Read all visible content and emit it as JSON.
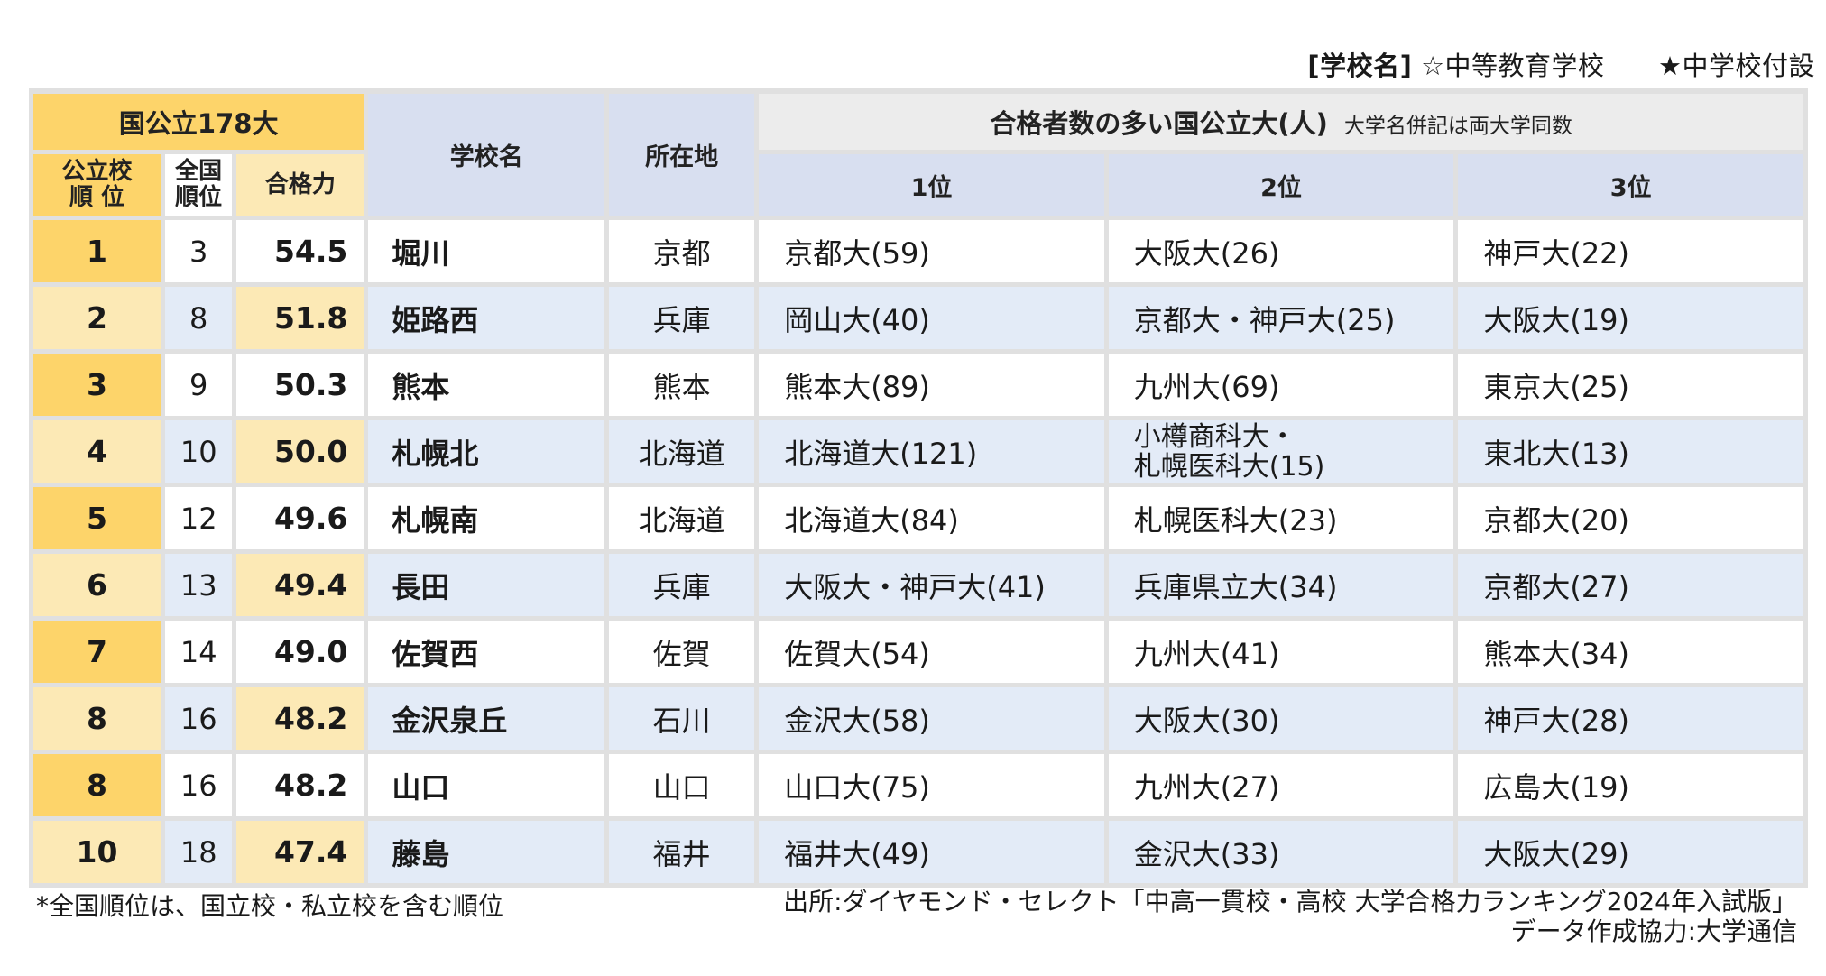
{
  "legend": {
    "label": "[学校名]",
    "chutou": "☆中等教育学校",
    "fusetsu": "★中学校付設"
  },
  "header": {
    "group_label": "国公立178大",
    "school_name": "学校名",
    "location": "所在地",
    "top_unis": "合格者数の多い国公立大(人)",
    "top_unis_note": "大学名併記は両大学同数",
    "public_rank": "公立校\n順 位",
    "national_rank": "全国\n順位",
    "score": "合格力",
    "pos1": "1位",
    "pos2": "2位",
    "pos3": "3位"
  },
  "rows": [
    {
      "public_rank": "1",
      "national_rank": "3",
      "score": "54.5",
      "name": "堀川",
      "location": "京都",
      "u1": "京都大(59)",
      "u2": "大阪大(26)",
      "u3": "神戸大(22)"
    },
    {
      "public_rank": "2",
      "national_rank": "8",
      "score": "51.8",
      "name": "姫路西",
      "location": "兵庫",
      "u1": "岡山大(40)",
      "u2": "京都大・神戸大(25)",
      "u3": "大阪大(19)"
    },
    {
      "public_rank": "3",
      "national_rank": "9",
      "score": "50.3",
      "name": "熊本",
      "location": "熊本",
      "u1": "熊本大(89)",
      "u2": "九州大(69)",
      "u3": "東京大(25)"
    },
    {
      "public_rank": "4",
      "national_rank": "10",
      "score": "50.0",
      "name": "札幌北",
      "location": "北海道",
      "u1": "北海道大(121)",
      "u2": "小樽商科大・\n札幌医科大(15)",
      "u3": "東北大(13)"
    },
    {
      "public_rank": "5",
      "national_rank": "12",
      "score": "49.6",
      "name": "札幌南",
      "location": "北海道",
      "u1": "北海道大(84)",
      "u2": "札幌医科大(23)",
      "u3": "京都大(20)"
    },
    {
      "public_rank": "6",
      "national_rank": "13",
      "score": "49.4",
      "name": "長田",
      "location": "兵庫",
      "u1": "大阪大・神戸大(41)",
      "u2": "兵庫県立大(34)",
      "u3": "京都大(27)"
    },
    {
      "public_rank": "7",
      "national_rank": "14",
      "score": "49.0",
      "name": "佐賀西",
      "location": "佐賀",
      "u1": "佐賀大(54)",
      "u2": "九州大(41)",
      "u3": "熊本大(34)"
    },
    {
      "public_rank": "8",
      "national_rank": "16",
      "score": "48.2",
      "name": "金沢泉丘",
      "location": "石川",
      "u1": "金沢大(58)",
      "u2": "大阪大(30)",
      "u3": "神戸大(28)"
    },
    {
      "public_rank": "8",
      "national_rank": "16",
      "score": "48.2",
      "name": "山口",
      "location": "山口",
      "u1": "山口大(75)",
      "u2": "九州大(27)",
      "u3": "広島大(19)"
    },
    {
      "public_rank": "10",
      "national_rank": "18",
      "score": "47.4",
      "name": "藤島",
      "location": "福井",
      "u1": "福井大(49)",
      "u2": "金沢大(33)",
      "u3": "大阪大(29)"
    }
  ],
  "footnote": "*全国順位は、国立校・私立校を含む順位",
  "source": "出所:ダイヤモンド・セレクト「中高一貫校・高校 大学合格力ランキング2024年入試版」",
  "credit": "データ作成協力:大学通信"
}
